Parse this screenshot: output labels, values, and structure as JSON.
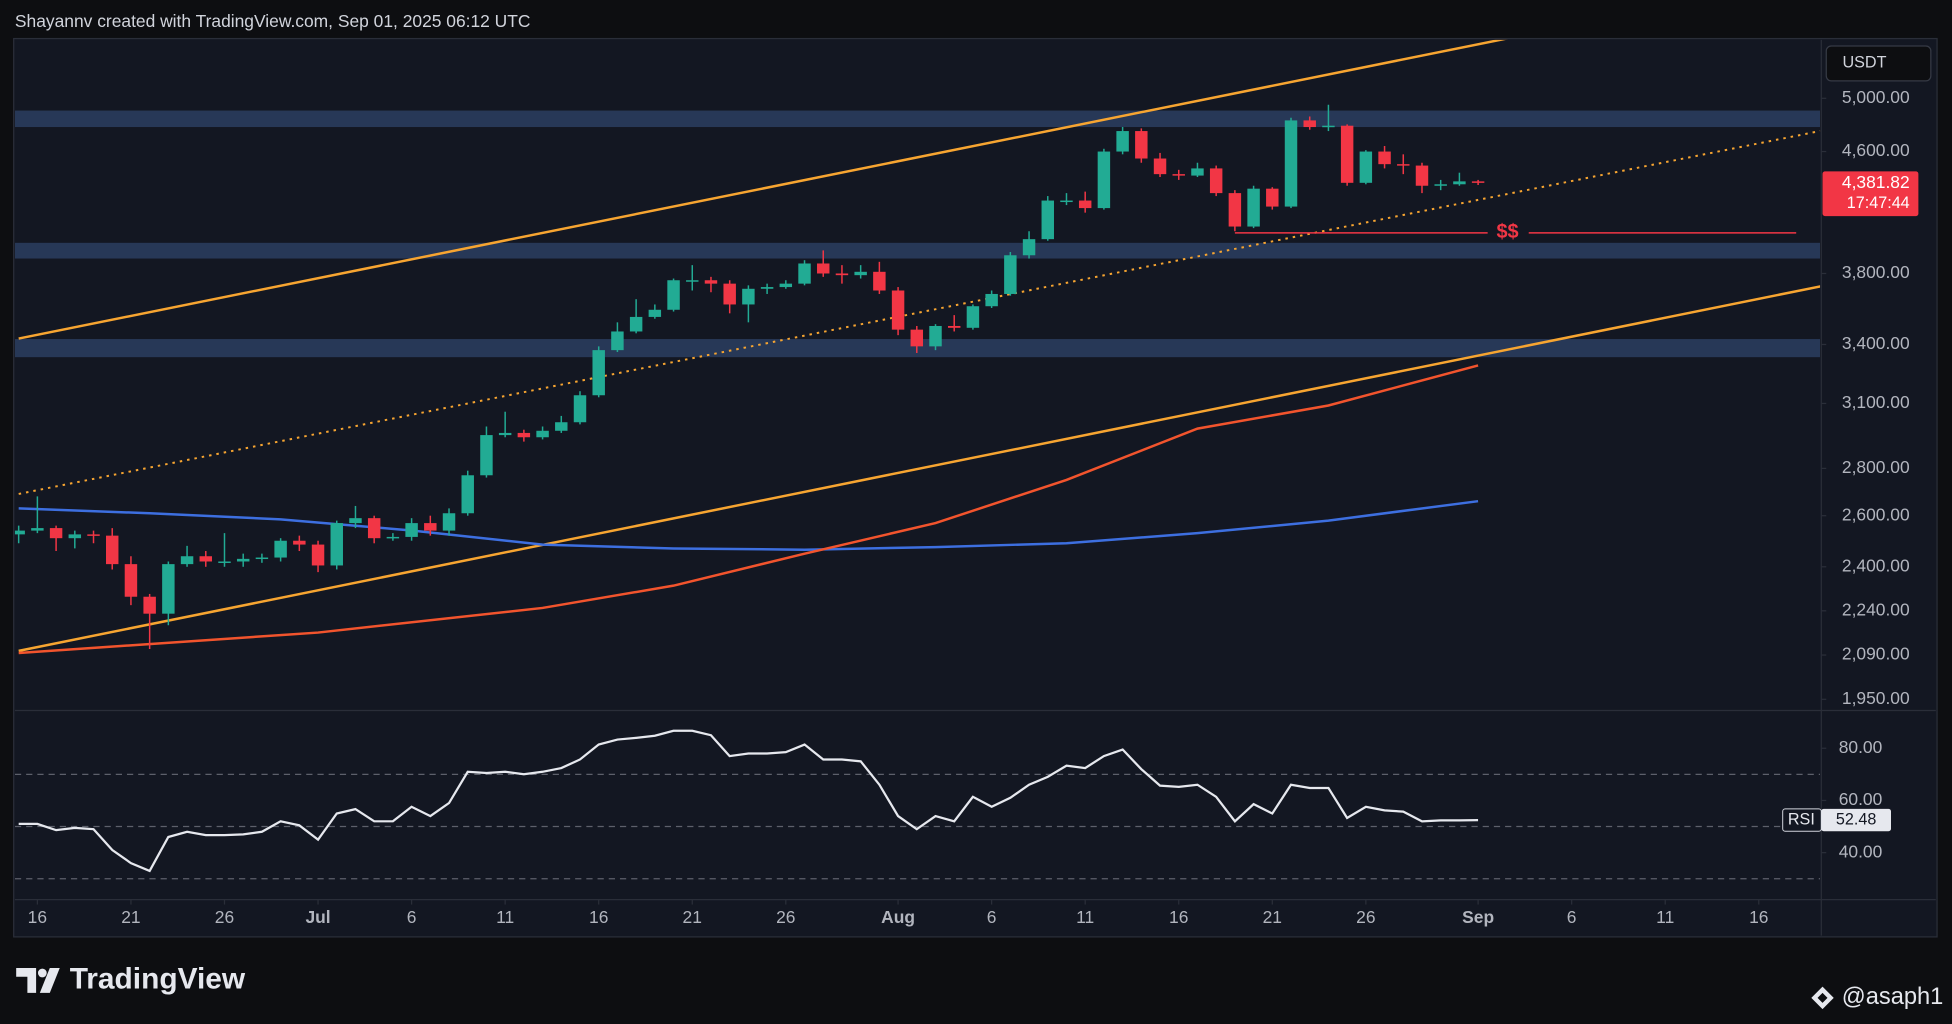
{
  "header": "Shayannv created with TradingView.com, Sep 01, 2025 06:12 UTC",
  "brand": "TradingView",
  "watermark": "@asaph1",
  "chart_data": [
    {
      "type": "candlestick",
      "currency": "USDT",
      "log": true,
      "up_color": "#22ab94",
      "down_color": "#f23645",
      "categories": [
        "Jun 15",
        "Jun 16",
        "Jun 17",
        "Jun 18",
        "Jun 19",
        "Jun 20",
        "Jun 21",
        "Jun 22",
        "Jun 23",
        "Jun 24",
        "Jun 25",
        "Jun 26",
        "Jun 27",
        "Jun 28",
        "Jun 29",
        "Jun 30",
        "Jul 01",
        "Jul 02",
        "Jul 03",
        "Jul 04",
        "Jul 05",
        "Jul 06",
        "Jul 07",
        "Jul 08",
        "Jul 09",
        "Jul 10",
        "Jul 11",
        "Jul 12",
        "Jul 13",
        "Jul 14",
        "Jul 15",
        "Jul 16",
        "Jul 17",
        "Jul 18",
        "Jul 19",
        "Jul 20",
        "Jul 21",
        "Jul 22",
        "Jul 23",
        "Jul 24",
        "Jul 25",
        "Jul 26",
        "Jul 27",
        "Jul 28",
        "Jul 29",
        "Jul 30",
        "Jul 31",
        "Aug 01",
        "Aug 02",
        "Aug 03",
        "Aug 04",
        "Aug 05",
        "Aug 06",
        "Aug 07",
        "Aug 08",
        "Aug 09",
        "Aug 10",
        "Aug 11",
        "Aug 12",
        "Aug 13",
        "Aug 14",
        "Aug 15",
        "Aug 16",
        "Aug 17",
        "Aug 18",
        "Aug 19",
        "Aug 20",
        "Aug 21",
        "Aug 22",
        "Aug 23",
        "Aug 24",
        "Aug 25",
        "Aug 26",
        "Aug 27",
        "Aug 28",
        "Aug 29",
        "Aug 30",
        "Aug 31",
        "Sep 01"
      ],
      "open": [
        2525,
        2540,
        2550,
        2510,
        2525,
        2520,
        2410,
        2290,
        2230,
        2410,
        2440,
        2420,
        2420,
        2430,
        2435,
        2500,
        2485,
        2405,
        2570,
        2590,
        2510,
        2515,
        2570,
        2540,
        2610,
        2770,
        2950,
        2960,
        2940,
        2970,
        3010,
        3140,
        3370,
        3470,
        3550,
        3590,
        3760,
        3760,
        3740,
        3620,
        3710,
        3720,
        3740,
        3860,
        3800,
        3790,
        3810,
        3700,
        3480,
        3390,
        3500,
        3490,
        3610,
        3680,
        3910,
        4010,
        4260,
        4260,
        4210,
        4600,
        4750,
        4550,
        4440,
        4430,
        4480,
        4310,
        4090,
        4340,
        4220,
        4830,
        4780,
        4790,
        4380,
        4600,
        4510,
        4500,
        4360,
        4370,
        4390
      ],
      "high": [
        2560,
        2680,
        2560,
        2540,
        2540,
        2550,
        2440,
        2300,
        2420,
        2480,
        2460,
        2530,
        2450,
        2450,
        2510,
        2520,
        2500,
        2580,
        2640,
        2600,
        2530,
        2590,
        2600,
        2630,
        2790,
        2990,
        3060,
        2975,
        2990,
        3040,
        3160,
        3390,
        3520,
        3650,
        3620,
        3770,
        3850,
        3780,
        3760,
        3730,
        3740,
        3760,
        3880,
        3940,
        3850,
        3850,
        3870,
        3720,
        3500,
        3510,
        3560,
        3620,
        3700,
        3930,
        4060,
        4290,
        4310,
        4320,
        4620,
        4780,
        4770,
        4590,
        4470,
        4520,
        4500,
        4330,
        4360,
        4350,
        4850,
        4860,
        4950,
        4800,
        4610,
        4640,
        4580,
        4520,
        4400,
        4450,
        4400
      ],
      "low": [
        2490,
        2530,
        2460,
        2470,
        2490,
        2390,
        2260,
        2110,
        2190,
        2400,
        2400,
        2400,
        2400,
        2415,
        2420,
        2460,
        2380,
        2390,
        2550,
        2490,
        2500,
        2500,
        2520,
        2520,
        2600,
        2760,
        2940,
        2920,
        2930,
        2960,
        3000,
        3130,
        3360,
        3460,
        3540,
        3580,
        3700,
        3690,
        3570,
        3520,
        3680,
        3710,
        3730,
        3780,
        3740,
        3770,
        3680,
        3450,
        3355,
        3370,
        3470,
        3480,
        3600,
        3670,
        3890,
        4000,
        4230,
        4180,
        4200,
        4580,
        4520,
        4420,
        4400,
        4420,
        4290,
        4060,
        4080,
        4200,
        4210,
        4760,
        4750,
        4360,
        4370,
        4480,
        4440,
        4310,
        4330,
        4360,
        4365
      ],
      "close": [
        2540,
        2550,
        2510,
        2525,
        2520,
        2410,
        2290,
        2230,
        2410,
        2440,
        2420,
        2420,
        2430,
        2435,
        2500,
        2485,
        2405,
        2570,
        2590,
        2510,
        2515,
        2570,
        2540,
        2610,
        2770,
        2950,
        2960,
        2940,
        2970,
        3010,
        3140,
        3370,
        3470,
        3550,
        3590,
        3760,
        3760,
        3740,
        3620,
        3710,
        3720,
        3740,
        3860,
        3800,
        3790,
        3810,
        3700,
        3480,
        3390,
        3500,
        3490,
        3610,
        3680,
        3910,
        4010,
        4260,
        4260,
        4210,
        4600,
        4750,
        4550,
        4440,
        4430,
        4480,
        4310,
        4090,
        4340,
        4220,
        4830,
        4780,
        4790,
        4380,
        4600,
        4510,
        4500,
        4360,
        4370,
        4390,
        4381.82
      ],
      "last_label": "4,381.82",
      "countdown": "17:47:44",
      "series": [
        {
          "color": "#3d6fe0",
          "x": [
            "Jun 15",
            "Jun 22",
            "Jun 29",
            "Jul 06",
            "Jul 13",
            "Jul 20",
            "Jul 27",
            "Aug 03",
            "Aug 10",
            "Aug 17",
            "Aug 24",
            "Sep 01"
          ],
          "values": [
            2630,
            2610,
            2585,
            2540,
            2485,
            2470,
            2465,
            2475,
            2490,
            2530,
            2580,
            2660
          ]
        },
        {
          "color": "#f2542d",
          "x": [
            "Jun 15",
            "Jul 01",
            "Jul 13",
            "Jul 20",
            "Jul 27",
            "Aug 03",
            "Aug 10",
            "Aug 17",
            "Aug 24",
            "Sep 01"
          ],
          "values": [
            2097,
            2165,
            2250,
            2330,
            2450,
            2570,
            2750,
            2980,
            3090,
            3290
          ]
        }
      ],
      "trendlines": [
        {
          "color": "#f7a531",
          "style": "solid",
          "x": [
            "Jun 15",
            "Sep 20"
          ],
          "values": [
            3432,
            6088
          ]
        },
        {
          "color": "#f7a531",
          "style": "solid",
          "x": [
            "Jun 15",
            "Sep 20"
          ],
          "values": [
            2104,
            3740
          ]
        },
        {
          "color": "#f7a531",
          "style": "dotted",
          "x": [
            "Jun 15",
            "Sep 20"
          ],
          "values": [
            2690,
            4771
          ]
        }
      ],
      "zones": [
        {
          "from": 4780,
          "to": 4905
        },
        {
          "from": 3890,
          "to": 3987
        },
        {
          "from": 3333,
          "to": 3429
        }
      ],
      "zone_color": "#2c3e60",
      "annotation": {
        "text": "$$",
        "value": 4050,
        "x": [
          "Aug 19",
          "Sep 18"
        ],
        "color": "#f23645"
      },
      "ylim": [
        1920,
        5480
      ],
      "yticks": [
        {
          "value": 5000,
          "label": "5,000.00"
        },
        {
          "value": 4600,
          "label": "4,600.00"
        },
        {
          "value": 3800,
          "label": "3,800.00"
        },
        {
          "value": 3400,
          "label": "3,400.00"
        },
        {
          "value": 3100,
          "label": "3,100.00"
        },
        {
          "value": 2800,
          "label": "2,800.00"
        },
        {
          "value": 2600,
          "label": "2,600.00"
        },
        {
          "value": 2400,
          "label": "2,400.00"
        },
        {
          "value": 2240,
          "label": "2,240.00"
        },
        {
          "value": 2090,
          "label": "2,090.00"
        },
        {
          "value": 1950,
          "label": "1,950.00"
        }
      ],
      "xticks": [
        {
          "value": "Jun 16",
          "label": "16"
        },
        {
          "value": "Jun 21",
          "label": "21"
        },
        {
          "value": "Jun 26",
          "label": "26"
        },
        {
          "value": "Jul 01",
          "label": "Jul"
        },
        {
          "value": "Jul 06",
          "label": "6"
        },
        {
          "value": "Jul 11",
          "label": "11"
        },
        {
          "value": "Jul 16",
          "label": "16"
        },
        {
          "value": "Jul 21",
          "label": "21"
        },
        {
          "value": "Jul 26",
          "label": "26"
        },
        {
          "value": "Aug 01",
          "label": "Aug"
        },
        {
          "value": "Aug 06",
          "label": "6"
        },
        {
          "value": "Aug 11",
          "label": "11"
        },
        {
          "value": "Aug 16",
          "label": "16"
        },
        {
          "value": "Aug 21",
          "label": "21"
        },
        {
          "value": "Aug 26",
          "label": "26"
        },
        {
          "value": "Sep 01",
          "label": "Sep"
        },
        {
          "value": "Sep 06",
          "label": "6"
        },
        {
          "value": "Sep 11",
          "label": "11"
        },
        {
          "value": "Sep 16",
          "label": "16"
        }
      ]
    },
    {
      "type": "line",
      "series": [
        {
          "name": "RSI",
          "color": "#e6e8ee",
          "values": [
            51,
            51,
            48.6,
            49.5,
            49,
            41,
            36,
            33,
            46,
            48,
            46.7,
            46.7,
            47,
            48,
            52,
            50.5,
            45,
            55,
            56.7,
            52,
            52,
            57.6,
            54,
            59,
            71,
            70.5,
            71,
            70,
            71,
            72.4,
            75.7,
            81.4,
            83.3,
            84,
            84.8,
            86.7,
            86.7,
            85,
            77,
            78,
            78,
            78.5,
            81.4,
            75.7,
            75.7,
            75,
            66,
            54,
            49,
            54,
            52,
            61.4,
            57.6,
            61,
            66,
            69,
            73.3,
            72.4,
            77,
            79.5,
            72,
            65.7,
            65.2,
            66,
            61.4,
            52,
            58.6,
            55,
            66,
            64.8,
            64.8,
            53.3,
            57.6,
            56.2,
            55.7,
            52,
            52.4,
            52.4,
            52.48
          ]
        }
      ],
      "bands": [
        70,
        50,
        30
      ],
      "ylim": [
        22.5,
        94
      ],
      "yticks": [
        {
          "value": 80,
          "label": "80.00"
        },
        {
          "value": 60,
          "label": "60.00"
        },
        {
          "value": 40,
          "label": "40.00"
        }
      ]
    }
  ]
}
